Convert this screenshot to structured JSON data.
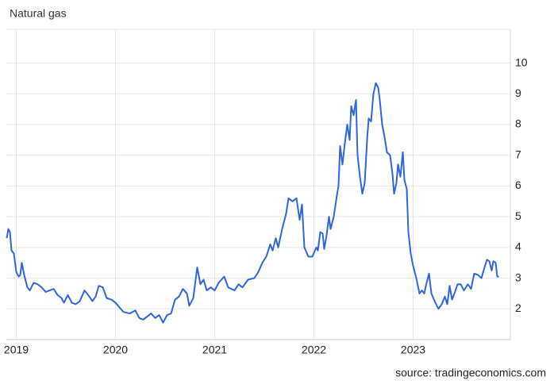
{
  "chart_data": {
    "type": "line",
    "title": "Natural gas",
    "source": "source: tradingeconomics.com",
    "color": "#2f65db",
    "grid": true,
    "xlim": [
      2018.9,
      2023.98
    ],
    "xticks": [
      2019,
      2020,
      2021,
      2022,
      2023
    ],
    "ylim": [
      1,
      11.1
    ],
    "yticks": [
      2,
      3,
      4,
      5,
      6,
      7,
      8,
      9,
      10
    ],
    "x": [
      2018.904,
      2018.92,
      2018.936,
      2018.952,
      2018.976,
      2019.0,
      2019.024,
      2019.04,
      2019.056,
      2019.08,
      2019.112,
      2019.136,
      2019.176,
      2019.216,
      2019.256,
      2019.296,
      2019.336,
      2019.376,
      2019.416,
      2019.456,
      2019.48,
      2019.52,
      2019.56,
      2019.6,
      2019.64,
      2019.688,
      2019.736,
      2019.768,
      2019.8,
      2019.832,
      2019.872,
      2019.912,
      2019.96,
      2020.0,
      2020.04,
      2020.08,
      2020.144,
      2020.2,
      2020.24,
      2020.28,
      2020.32,
      2020.36,
      2020.4,
      2020.44,
      2020.48,
      2020.52,
      2020.56,
      2020.6,
      2020.64,
      2020.68,
      2020.72,
      2020.744,
      2020.784,
      2020.8,
      2020.824,
      2020.856,
      2020.888,
      2020.92,
      2020.96,
      2021.0,
      2021.04,
      2021.096,
      2021.136,
      2021.2,
      2021.24,
      2021.28,
      2021.336,
      2021.4,
      2021.44,
      2021.48,
      2021.52,
      2021.56,
      2021.584,
      2021.616,
      2021.64,
      2021.68,
      2021.72,
      2021.744,
      2021.784,
      2021.824,
      2021.856,
      2021.88,
      2021.904,
      2021.944,
      2021.984,
      2022.024,
      2022.04,
      2022.064,
      2022.088,
      2022.104,
      2022.128,
      2022.152,
      2022.168,
      2022.2,
      2022.232,
      2022.248,
      2022.264,
      2022.288,
      2022.312,
      2022.336,
      2022.36,
      2022.376,
      2022.4,
      2022.424,
      2022.44,
      2022.464,
      2022.488,
      2022.512,
      2022.536,
      2022.552,
      2022.576,
      2022.6,
      2022.624,
      2022.648,
      2022.664,
      2022.688,
      2022.712,
      2022.736,
      2022.768,
      2022.792,
      2022.808,
      2022.832,
      2022.848,
      2022.872,
      2022.896,
      2022.912,
      2022.936,
      2022.952,
      2022.976,
      2023.0,
      2023.032,
      2023.064,
      2023.088,
      2023.112,
      2023.136,
      2023.16,
      2023.184,
      2023.224,
      2023.256,
      2023.288,
      2023.32,
      2023.344,
      2023.368,
      2023.392,
      2023.416,
      2023.448,
      2023.48,
      2023.512,
      2023.552,
      2023.584,
      2023.616,
      2023.656,
      2023.688,
      2023.72,
      2023.744,
      2023.768,
      2023.792,
      2023.808,
      2023.832,
      2023.848,
      2023.864
    ],
    "values": [
      4.3,
      4.6,
      4.5,
      3.9,
      3.8,
      3.2,
      3.05,
      3.1,
      3.5,
      3.1,
      2.7,
      2.6,
      2.85,
      2.8,
      2.7,
      2.55,
      2.6,
      2.65,
      2.45,
      2.35,
      2.2,
      2.45,
      2.2,
      2.15,
      2.25,
      2.6,
      2.4,
      2.25,
      2.4,
      2.75,
      2.7,
      2.35,
      2.3,
      2.2,
      2.05,
      1.9,
      1.85,
      1.95,
      1.7,
      1.65,
      1.75,
      1.85,
      1.7,
      1.8,
      1.55,
      1.8,
      1.85,
      2.3,
      2.4,
      2.65,
      2.5,
      2.1,
      2.35,
      2.75,
      3.35,
      2.8,
      2.95,
      2.6,
      2.7,
      2.6,
      2.85,
      3.05,
      2.7,
      2.6,
      2.8,
      2.7,
      2.95,
      3.0,
      3.2,
      3.5,
      3.7,
      4.1,
      3.9,
      4.3,
      4.0,
      4.6,
      5.1,
      5.6,
      5.5,
      5.6,
      4.9,
      5.4,
      4.0,
      3.7,
      3.7,
      4.0,
      3.9,
      4.5,
      4.45,
      3.95,
      4.4,
      5.0,
      4.6,
      5.0,
      5.7,
      6.0,
      7.3,
      6.7,
      7.4,
      8.0,
      7.5,
      8.6,
      8.3,
      8.8,
      7.0,
      6.3,
      5.75,
      6.1,
      7.5,
      8.2,
      8.1,
      9.0,
      9.35,
      9.2,
      8.8,
      8.0,
      7.6,
      7.1,
      7.0,
      6.4,
      5.75,
      6.1,
      6.7,
      6.3,
      7.1,
      6.2,
      5.9,
      4.5,
      3.8,
      3.4,
      3.0,
      2.5,
      2.6,
      2.5,
      2.85,
      3.15,
      2.5,
      2.2,
      2.0,
      2.15,
      2.4,
      2.15,
      2.75,
      2.3,
      2.5,
      2.8,
      2.8,
      2.6,
      2.8,
      2.65,
      3.15,
      3.1,
      3.0,
      3.35,
      3.6,
      3.55,
      3.25,
      3.55,
      3.5,
      3.05,
      3.05
    ]
  }
}
